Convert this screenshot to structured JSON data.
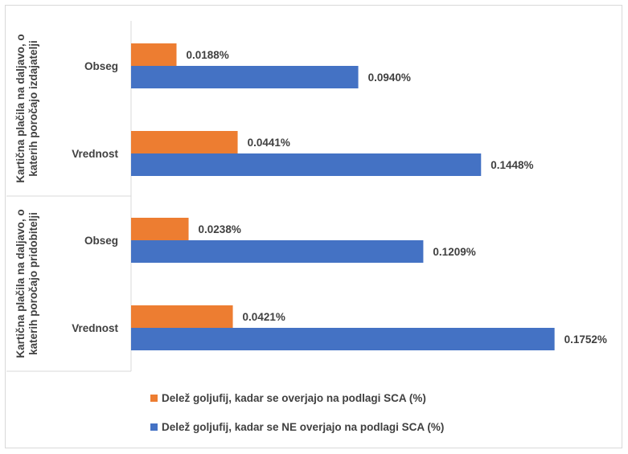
{
  "chart_data": {
    "type": "bar",
    "orientation": "horizontal",
    "groups": [
      {
        "label": "Kartična plačila na daljavo, o katerih poročajo izdajatelji",
        "categories": [
          "Obseg",
          "Vrednost"
        ]
      },
      {
        "label": "Kartična plačila na daljavo, o katerih poročajo pridobitelji",
        "categories": [
          "Obseg",
          "Vrednost"
        ]
      }
    ],
    "series": [
      {
        "name": "Delež goljufij, kadar se overjajo na podlagi SCA (%)",
        "color": "#ed7d31",
        "values": [
          0.0188,
          0.0441,
          0.0238,
          0.0421
        ],
        "labels": [
          "0.0188%",
          "0.0441%",
          "0.0238%",
          "0.0421%"
        ]
      },
      {
        "name": "Delež goljufij, kadar se NE overjajo na podlagi SCA (%)",
        "color": "#4472c4",
        "values": [
          0.094,
          0.1448,
          0.1209,
          0.1752
        ],
        "labels": [
          "0.0940%",
          "0.1448%",
          "0.1209%",
          "0.1752%"
        ]
      }
    ],
    "xlim": [
      0,
      0.19
    ],
    "grid": false,
    "legend_position": "bottom"
  }
}
